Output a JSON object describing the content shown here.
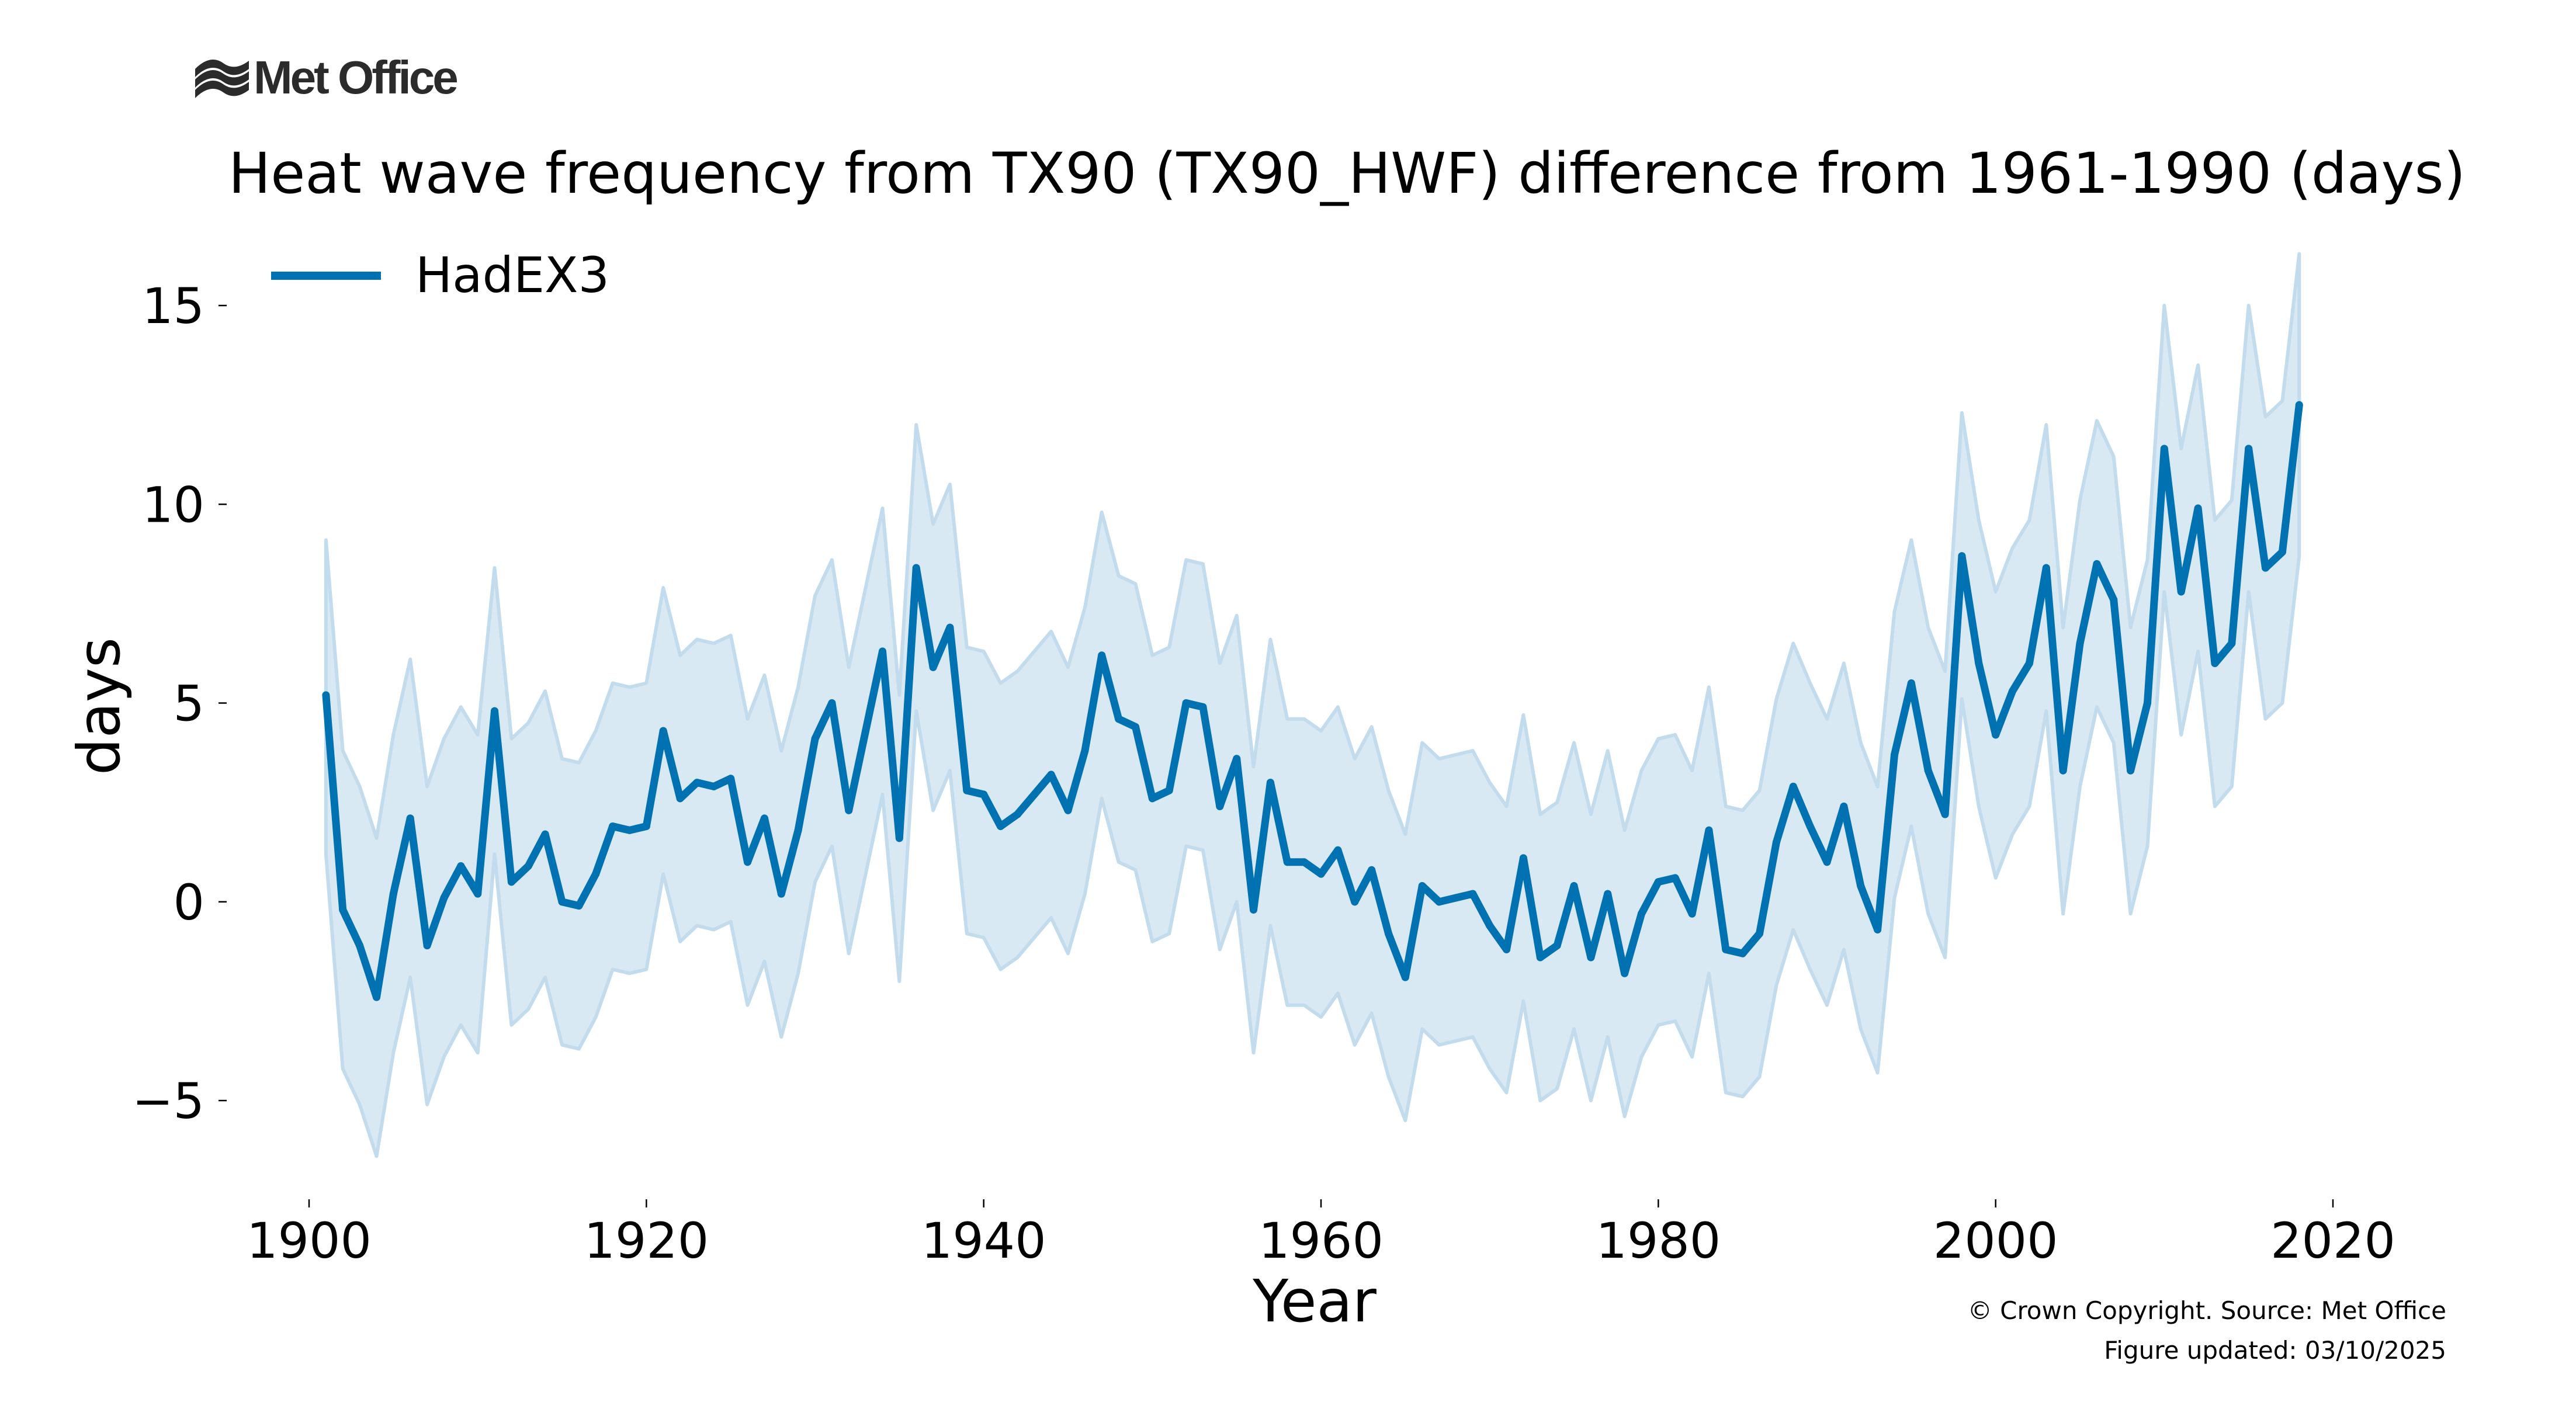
{
  "logo": {
    "text": "Met Office",
    "icon": "met-office-waves-icon"
  },
  "footer": {
    "copyright": "© Crown Copyright. Source: Met Office",
    "updated": "Figure updated: 03/10/2025"
  },
  "colors": {
    "line": "#0072B2",
    "band_fill": "#d9e9f3",
    "band_edge": "#c2dced",
    "text": "#000000"
  },
  "chart_data": {
    "type": "line",
    "title": "Heat wave frequency from TX90 (TX90_HWF) difference from 1961-1990 (days)",
    "xlabel": "Year",
    "ylabel": "days",
    "xlim": [
      1896,
      2029
    ],
    "ylim": [
      -7.5,
      16.5
    ],
    "xticks": [
      1900,
      1920,
      1940,
      1960,
      1980,
      2000,
      2020
    ],
    "xtick_labels": [
      "1900",
      "1920",
      "1940",
      "1960",
      "1980",
      "2000",
      "2020"
    ],
    "yticks": [
      -5,
      0,
      5,
      10,
      15
    ],
    "ytick_labels": [
      "−5",
      "0",
      "5",
      "10",
      "15"
    ],
    "grid": false,
    "legend": {
      "position": "top-left",
      "entries": [
        "HadEX3"
      ]
    },
    "x_start": 1901,
    "series": [
      {
        "name": "HadEX3",
        "values": [
          5.2,
          -0.2,
          -1.1,
          -2.4,
          0.2,
          2.1,
          -1.1,
          0.1,
          0.9,
          0.2,
          4.8,
          0.5,
          0.9,
          1.7,
          0.0,
          -0.1,
          0.7,
          1.9,
          1.8,
          1.9,
          4.3,
          2.6,
          3.0,
          2.9,
          3.1,
          1.0,
          2.1,
          0.2,
          1.8,
          4.1,
          5.0,
          2.3,
          4.3,
          6.3,
          1.6,
          8.4,
          5.9,
          6.9,
          2.8,
          2.7,
          1.9,
          2.2,
          2.7,
          3.2,
          2.3,
          3.8,
          6.2,
          4.6,
          4.4,
          2.6,
          2.8,
          5.0,
          4.9,
          2.4,
          3.6,
          -0.2,
          3.0,
          1.0,
          1.0,
          0.7,
          1.3,
          0.0,
          0.8,
          -0.8,
          -1.9,
          0.4,
          0.0,
          0.1,
          0.2,
          -0.6,
          -1.2,
          1.1,
          -1.4,
          -1.1,
          0.4,
          -1.4,
          0.2,
          -1.8,
          -0.3,
          0.5,
          0.6,
          -0.3,
          1.8,
          -1.2,
          -1.3,
          -0.8,
          1.5,
          2.9,
          1.9,
          1.0,
          2.4,
          0.4,
          -0.7,
          3.7,
          5.5,
          3.3,
          2.2,
          8.7,
          6.0,
          4.2,
          5.3,
          6.0,
          8.4,
          3.3,
          6.5,
          8.5,
          7.6,
          3.3,
          5.0,
          11.4,
          7.8,
          9.9,
          6.0,
          6.5,
          11.4,
          8.4,
          8.8,
          12.5
        ],
        "upper": [
          9.1,
          3.8,
          2.9,
          1.6,
          4.2,
          6.1,
          2.9,
          4.1,
          4.9,
          4.2,
          8.4,
          4.1,
          4.5,
          5.3,
          3.6,
          3.5,
          4.3,
          5.5,
          5.4,
          5.5,
          7.9,
          6.2,
          6.6,
          6.5,
          6.7,
          4.6,
          5.7,
          3.8,
          5.4,
          7.7,
          8.6,
          5.9,
          7.9,
          9.9,
          5.2,
          12.0,
          9.5,
          10.5,
          6.4,
          6.3,
          5.5,
          5.8,
          6.3,
          6.8,
          5.9,
          7.4,
          9.8,
          8.2,
          8.0,
          6.2,
          6.4,
          8.6,
          8.5,
          6.0,
          7.2,
          3.4,
          6.6,
          4.6,
          4.6,
          4.3,
          4.9,
          3.6,
          4.4,
          2.8,
          1.7,
          4.0,
          3.6,
          3.7,
          3.8,
          3.0,
          2.4,
          4.7,
          2.2,
          2.5,
          4.0,
          2.2,
          3.8,
          1.8,
          3.3,
          4.1,
          4.2,
          3.3,
          5.4,
          2.4,
          2.3,
          2.8,
          5.1,
          6.5,
          5.5,
          4.6,
          6.0,
          4.0,
          2.9,
          7.3,
          9.1,
          6.9,
          5.8,
          12.3,
          9.6,
          7.8,
          8.9,
          9.6,
          12.0,
          6.9,
          10.1,
          12.1,
          11.2,
          6.9,
          8.6,
          15.0,
          11.4,
          13.5,
          9.6,
          10.1,
          15.0,
          12.2,
          12.6,
          16.3
        ],
        "lower": [
          1.2,
          -4.2,
          -5.1,
          -6.4,
          -3.8,
          -1.9,
          -5.1,
          -3.9,
          -3.1,
          -3.8,
          1.2,
          -3.1,
          -2.7,
          -1.9,
          -3.6,
          -3.7,
          -2.9,
          -1.7,
          -1.8,
          -1.7,
          0.7,
          -1.0,
          -0.6,
          -0.7,
          -0.5,
          -2.6,
          -1.5,
          -3.4,
          -1.8,
          0.5,
          1.4,
          -1.3,
          0.7,
          2.7,
          -2.0,
          4.8,
          2.3,
          3.3,
          -0.8,
          -0.9,
          -1.7,
          -1.4,
          -0.9,
          -0.4,
          -1.3,
          0.2,
          2.6,
          1.0,
          0.8,
          -1.0,
          -0.8,
          1.4,
          1.3,
          -1.2,
          0.0,
          -3.8,
          -0.6,
          -2.6,
          -2.6,
          -2.9,
          -2.3,
          -3.6,
          -2.8,
          -4.4,
          -5.5,
          -3.2,
          -3.6,
          -3.5,
          -3.4,
          -4.2,
          -4.8,
          -2.5,
          -5.0,
          -4.7,
          -3.2,
          -5.0,
          -3.4,
          -5.4,
          -3.9,
          -3.1,
          -3.0,
          -3.9,
          -1.8,
          -4.8,
          -4.9,
          -4.4,
          -2.1,
          -0.7,
          -1.7,
          -2.6,
          -1.2,
          -3.2,
          -4.3,
          0.1,
          1.9,
          -0.3,
          -1.4,
          5.1,
          2.4,
          0.6,
          1.7,
          2.4,
          4.8,
          -0.3,
          2.9,
          4.9,
          4.0,
          -0.3,
          1.4,
          7.8,
          4.2,
          6.3,
          2.4,
          2.9,
          7.8,
          4.6,
          5.0,
          8.7
        ]
      }
    ]
  }
}
